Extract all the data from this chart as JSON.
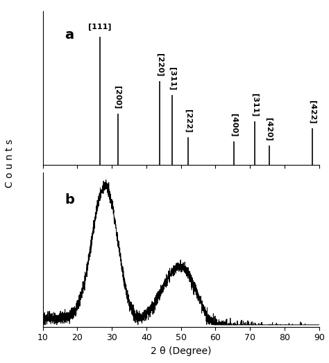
{
  "xlim": [
    10,
    90
  ],
  "xlabel": "2 θ (Degree)",
  "ylabel": "C o u n t s",
  "xticks": [
    10,
    20,
    30,
    40,
    50,
    60,
    70,
    80,
    90
  ],
  "background_color": "#ffffff",
  "panel_a_label": "a",
  "panel_b_label": "b",
  "peaks_a": {
    "positions": [
      26.5,
      31.7,
      43.9,
      47.5,
      52.1,
      65.4,
      71.3,
      75.5,
      88.0
    ],
    "heights": [
      0.95,
      0.38,
      0.62,
      0.52,
      0.2,
      0.17,
      0.32,
      0.14,
      0.27
    ],
    "labels": [
      "[111]",
      "[200]",
      "[220]",
      "[311]",
      "[222]",
      "[400]",
      "[311]",
      "[420]",
      "[422]"
    ]
  },
  "noise_seed": 42
}
